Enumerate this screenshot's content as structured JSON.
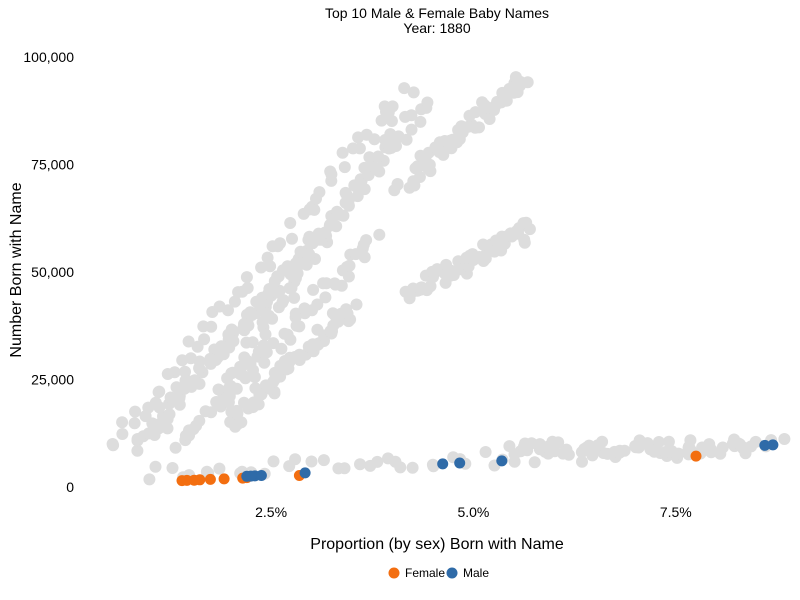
{
  "chart_data": {
    "type": "scatter",
    "title": "Top 10 Male & Female Baby Names",
    "subtitle": "Year: 1880",
    "xlabel": "Proportion (by sex) Born with Name",
    "ylabel": "Number Born with Name",
    "x_unit": "percent",
    "xlim": [
      0.3,
      8.8
    ],
    "ylim": [
      -3000,
      103000
    ],
    "x_ticks": [
      2.5,
      5.0,
      7.5
    ],
    "x_tick_labels": [
      "2.5%",
      "5.0%",
      "7.5%"
    ],
    "y_ticks": [
      0,
      25000,
      50000,
      75000,
      100000
    ],
    "y_tick_labels": [
      "0",
      "25,000",
      "50,000",
      "75,000",
      "100,000"
    ],
    "grid": false,
    "legend_position": "bottom",
    "background_series": {
      "color": "#dddddd",
      "description_note": "All other years (grey context points)",
      "trajectories": [
        {
          "from": [
            0.55,
            9500
          ],
          "to": [
            4.2,
            93000
          ]
        },
        {
          "from": [
            0.85,
            10000
          ],
          "to": [
            3.2,
            60000
          ]
        },
        {
          "from": [
            1.1,
            14000
          ],
          "to": [
            4.5,
            90000
          ]
        },
        {
          "from": [
            1.4,
            10000
          ],
          "to": [
            3.8,
            58000
          ]
        },
        {
          "from": [
            1.8,
            20000
          ],
          "to": [
            4.1,
            85000
          ]
        },
        {
          "from": [
            2.0,
            15000
          ],
          "to": [
            3.5,
            42000
          ]
        },
        {
          "from": [
            4.2,
            45000
          ],
          "to": [
            5.7,
            60000
          ]
        },
        {
          "from": [
            4.1,
            70000
          ],
          "to": [
            5.6,
            95000
          ]
        },
        {
          "from": [
            1.0,
            3500
          ],
          "to": [
            8.8,
            9500
          ]
        },
        {
          "from": [
            5.5,
            9000
          ],
          "to": [
            8.5,
            9500
          ]
        }
      ]
    },
    "series": [
      {
        "name": "Female",
        "color": "#f36e10",
        "points": [
          {
            "x": 1.4,
            "y": 1500
          },
          {
            "x": 1.46,
            "y": 1550
          },
          {
            "x": 1.55,
            "y": 1600
          },
          {
            "x": 1.62,
            "y": 1700
          },
          {
            "x": 1.75,
            "y": 1800
          },
          {
            "x": 1.92,
            "y": 1900
          },
          {
            "x": 2.15,
            "y": 2100
          },
          {
            "x": 2.2,
            "y": 2200
          },
          {
            "x": 2.85,
            "y": 2700
          },
          {
            "x": 7.75,
            "y": 7200
          }
        ]
      },
      {
        "name": "Male",
        "color": "#2f6ba8",
        "points": [
          {
            "x": 2.2,
            "y": 2500
          },
          {
            "x": 2.3,
            "y": 2600
          },
          {
            "x": 2.38,
            "y": 2700
          },
          {
            "x": 2.92,
            "y": 3300
          },
          {
            "x": 4.62,
            "y": 5400
          },
          {
            "x": 4.83,
            "y": 5600
          },
          {
            "x": 5.35,
            "y": 6100
          },
          {
            "x": 8.6,
            "y": 9700
          },
          {
            "x": 8.7,
            "y": 9800
          },
          {
            "x": 2.25,
            "y": 2550
          }
        ]
      }
    ]
  }
}
